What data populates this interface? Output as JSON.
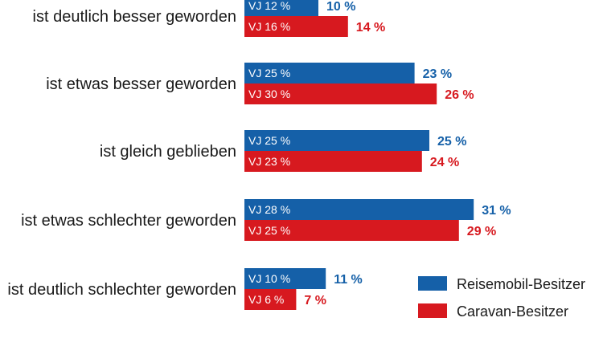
{
  "chart_data": {
    "type": "bar",
    "orientation": "horizontal",
    "categories": [
      "ist deutlich besser geworden",
      "ist etwas besser geworden",
      "ist gleich geblieben",
      "ist etwas schlechter geworden",
      "ist deutlich schlechter geworden"
    ],
    "series": [
      {
        "name": "Reisemobil-Besitzer",
        "color": "#1560a8",
        "values": [
          10,
          23,
          25,
          31,
          11
        ],
        "value_labels": [
          "10 %",
          "23 %",
          "25 %",
          "31 %",
          "11 %"
        ],
        "prev_year": [
          12,
          25,
          25,
          28,
          10
        ],
        "prev_year_labels": [
          "VJ 12 %",
          "VJ 25 %",
          "VJ 25 %",
          "VJ 28 %",
          "VJ 10 %"
        ]
      },
      {
        "name": "Caravan-Besitzer",
        "color": "#d7191f",
        "values": [
          14,
          26,
          24,
          29,
          7
        ],
        "value_labels": [
          "14 %",
          "26 %",
          "24 %",
          "29 %",
          "7 %"
        ],
        "prev_year": [
          16,
          30,
          23,
          25,
          6
        ],
        "prev_year_labels": [
          "VJ 16 %",
          "VJ 30 %",
          "VJ 23 %",
          "VJ 25 %",
          "VJ 6 %"
        ]
      }
    ],
    "legend": {
      "position": "bottom-right",
      "entries": [
        "Reisemobil-Besitzer",
        "Caravan-Besitzer"
      ]
    },
    "title": "",
    "xlabel": "",
    "ylabel": "",
    "grid": false
  }
}
